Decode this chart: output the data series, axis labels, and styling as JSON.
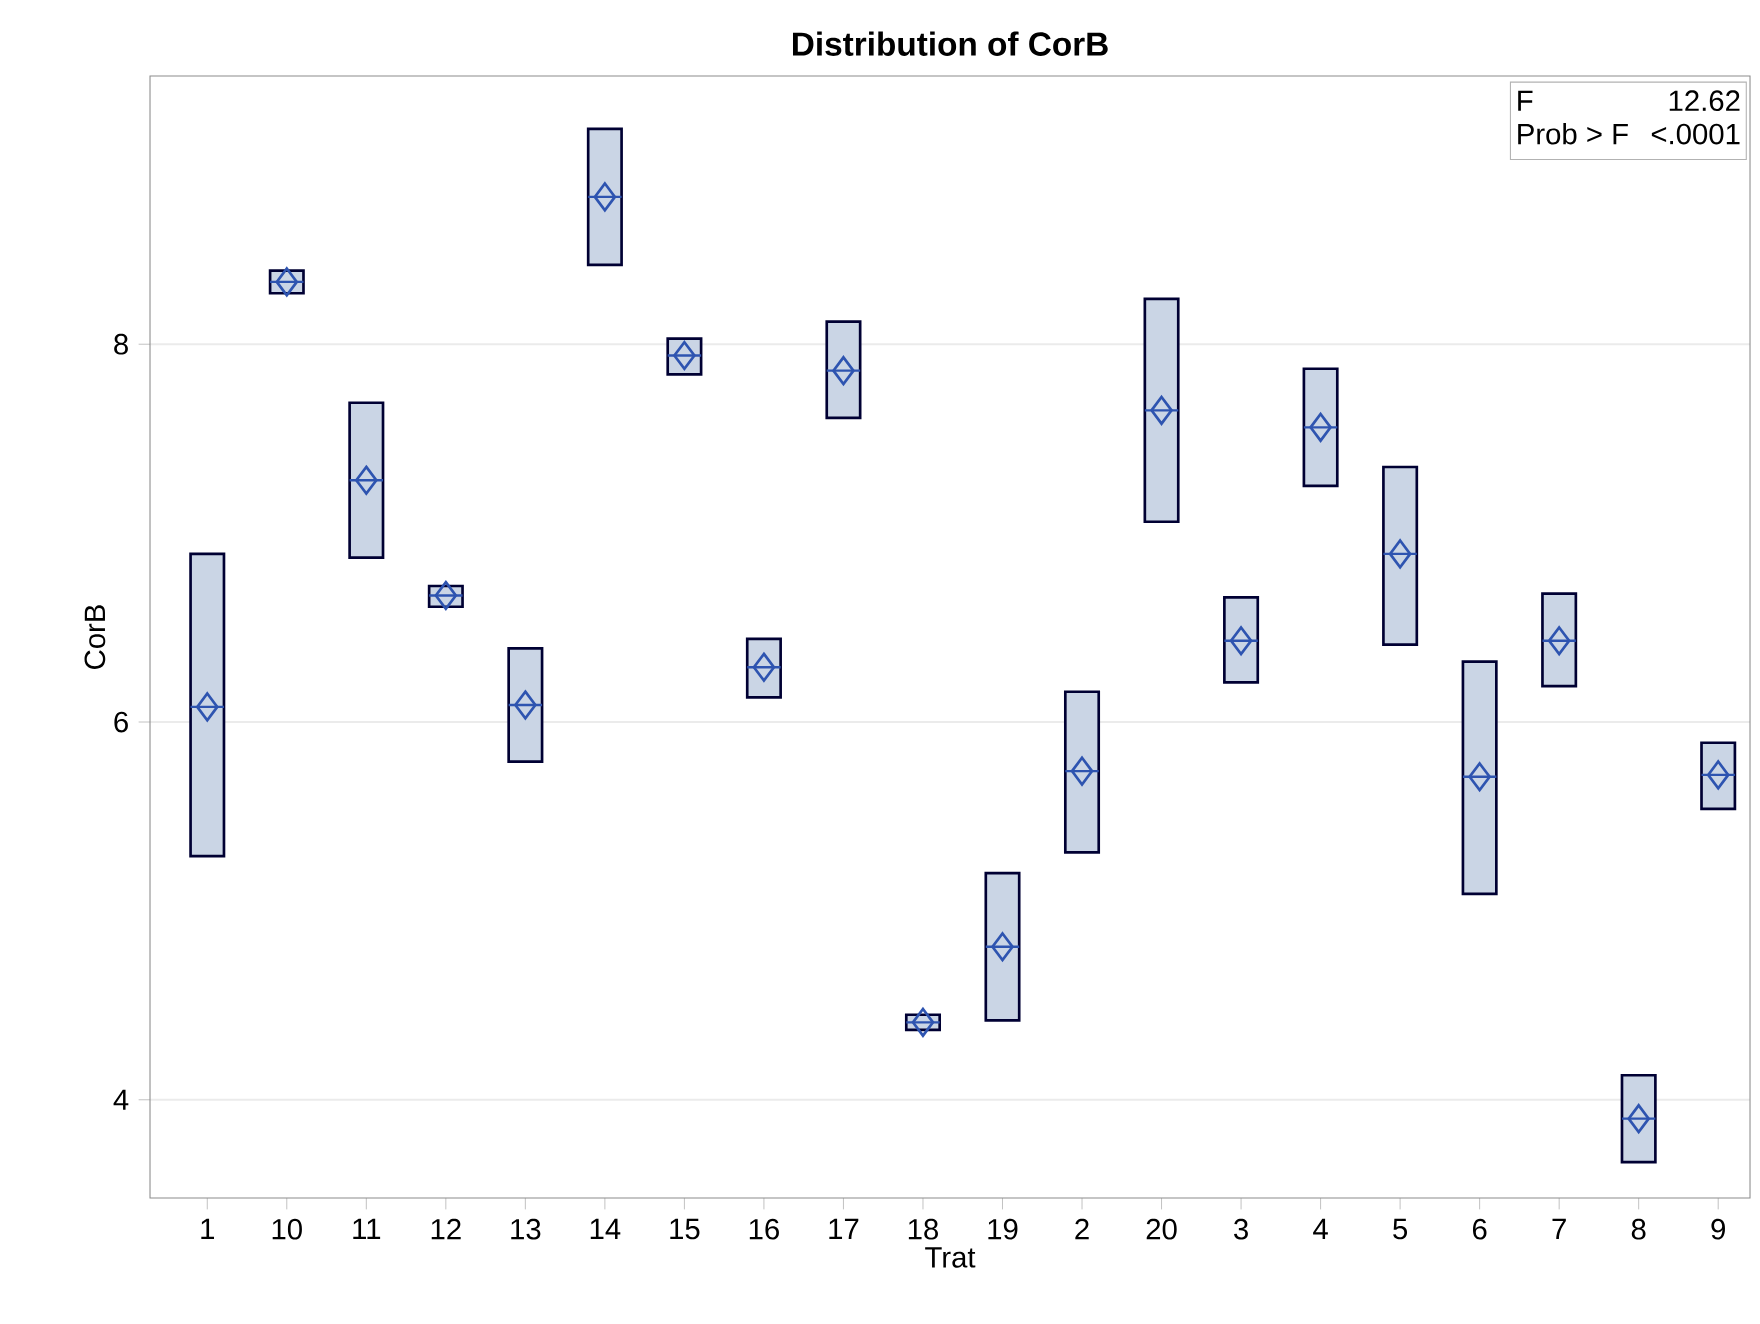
{
  "chart_data": {
    "type": "box",
    "title": "Distribution of CorB",
    "xlabel": "Trat",
    "ylabel": "CorB",
    "categories": [
      "1",
      "10",
      "11",
      "12",
      "13",
      "14",
      "15",
      "16",
      "17",
      "18",
      "19",
      "2",
      "20",
      "3",
      "4",
      "5",
      "6",
      "7",
      "8",
      "9"
    ],
    "boxes": [
      {
        "low": 5.29,
        "q1": 5.29,
        "median": 6.08,
        "q3": 6.89,
        "high": 6.89,
        "mean": 6.08
      },
      {
        "low": 8.27,
        "q1": 8.27,
        "median": 8.33,
        "q3": 8.39,
        "high": 8.39,
        "mean": 8.33
      },
      {
        "low": 6.87,
        "q1": 6.87,
        "median": 7.28,
        "q3": 7.69,
        "high": 7.69,
        "mean": 7.28
      },
      {
        "low": 6.61,
        "q1": 6.61,
        "median": 6.67,
        "q3": 6.72,
        "high": 6.72,
        "mean": 6.67
      },
      {
        "low": 5.79,
        "q1": 5.79,
        "median": 6.09,
        "q3": 6.39,
        "high": 6.39,
        "mean": 6.09
      },
      {
        "low": 8.42,
        "q1": 8.42,
        "median": 8.78,
        "q3": 9.14,
        "high": 9.14,
        "mean": 8.78
      },
      {
        "low": 7.84,
        "q1": 7.84,
        "median": 7.94,
        "q3": 8.03,
        "high": 8.03,
        "mean": 7.94
      },
      {
        "low": 6.13,
        "q1": 6.13,
        "median": 6.29,
        "q3": 6.44,
        "high": 6.44,
        "mean": 6.29
      },
      {
        "low": 7.61,
        "q1": 7.61,
        "median": 7.86,
        "q3": 8.12,
        "high": 8.12,
        "mean": 7.86
      },
      {
        "low": 4.37,
        "q1": 4.37,
        "median": 4.41,
        "q3": 4.45,
        "high": 4.45,
        "mean": 4.41
      },
      {
        "low": 4.42,
        "q1": 4.42,
        "median": 4.81,
        "q3": 5.2,
        "high": 5.2,
        "mean": 4.81
      },
      {
        "low": 5.31,
        "q1": 5.31,
        "median": 5.74,
        "q3": 6.16,
        "high": 6.16,
        "mean": 5.74
      },
      {
        "low": 7.06,
        "q1": 7.06,
        "median": 7.65,
        "q3": 8.24,
        "high": 8.24,
        "mean": 7.65
      },
      {
        "low": 6.21,
        "q1": 6.21,
        "median": 6.43,
        "q3": 6.66,
        "high": 6.66,
        "mean": 6.43
      },
      {
        "low": 7.25,
        "q1": 7.25,
        "median": 7.56,
        "q3": 7.87,
        "high": 7.87,
        "mean": 7.56
      },
      {
        "low": 6.41,
        "q1": 6.41,
        "median": 6.89,
        "q3": 7.35,
        "high": 7.35,
        "mean": 6.89
      },
      {
        "low": 5.09,
        "q1": 5.09,
        "median": 5.71,
        "q3": 6.32,
        "high": 6.32,
        "mean": 5.71
      },
      {
        "low": 6.19,
        "q1": 6.19,
        "median": 6.43,
        "q3": 6.68,
        "high": 6.68,
        "mean": 6.43
      },
      {
        "low": 3.67,
        "q1": 3.67,
        "median": 3.9,
        "q3": 4.13,
        "high": 4.13,
        "mean": 3.9
      },
      {
        "low": 5.54,
        "q1": 5.54,
        "median": 5.72,
        "q3": 5.89,
        "high": 5.89,
        "mean": 5.72
      }
    ],
    "color": "#cad5e5",
    "ylim": [
      3.48,
      9.42
    ],
    "yticks": [
      4,
      6,
      8
    ],
    "grid": "y",
    "marker": "diamond",
    "annotations": [
      "F",
      "12.62",
      "Prob > F",
      "<.0001"
    ]
  }
}
